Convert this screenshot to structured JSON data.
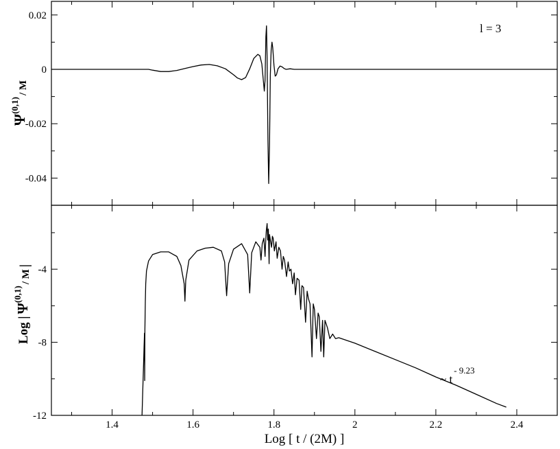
{
  "chart_data": [
    {
      "type": "line",
      "panel": "top",
      "ylabel": {
        "main": "Ψ",
        "sup": "(0,1)",
        "sub": "/ M"
      },
      "annotation": "l = 3",
      "xlim": [
        1.25,
        2.5
      ],
      "ylim": [
        -0.05,
        0.025
      ],
      "yticks": [
        0.02,
        0,
        -0.02,
        -0.04
      ],
      "ytick_labels": [
        "0.02",
        "0",
        "-0.02",
        "-0.04"
      ],
      "series": [
        {
          "x": [
            1.25,
            1.3,
            1.4,
            1.48,
            1.49,
            1.5,
            1.52,
            1.54,
            1.56,
            1.58,
            1.6,
            1.62,
            1.64,
            1.66,
            1.68,
            1.7,
            1.71,
            1.72,
            1.73,
            1.74,
            1.75,
            1.76,
            1.765,
            1.77,
            1.773,
            1.776,
            1.778,
            1.78,
            1.7815,
            1.783,
            1.785,
            1.787,
            1.789,
            1.791,
            1.793,
            1.795,
            1.797,
            1.8,
            1.803,
            1.806,
            1.81,
            1.815,
            1.82,
            1.825,
            1.83,
            1.84,
            1.85,
            1.9,
            2.0,
            2.2,
            2.4,
            2.5
          ],
          "y": [
            0,
            0,
            0,
            0,
            0,
            -0.0003,
            -0.0008,
            -0.0008,
            -0.0004,
            0.0003,
            0.001,
            0.0016,
            0.0018,
            0.0013,
            0.0002,
            -0.002,
            -0.0032,
            -0.0038,
            -0.003,
            0.0002,
            0.004,
            0.0055,
            0.005,
            0.002,
            -0.003,
            -0.008,
            -0.004,
            0.012,
            0.016,
            0.004,
            -0.026,
            -0.042,
            -0.028,
            -0.002,
            0.007,
            0.01,
            0.008,
            0.0015,
            -0.0025,
            -0.002,
            0.0002,
            0.0012,
            0.0009,
            0.0003,
            0.0,
            0.0002,
            0,
            0,
            0,
            0,
            0,
            0
          ]
        }
      ]
    },
    {
      "type": "line",
      "panel": "bottom",
      "ylabel": {
        "prefix": "Log |",
        "main": "Ψ",
        "sup": "(0,1)",
        "sub": "/ M",
        "suffix": "|"
      },
      "annotation": {
        "base": "~ t",
        "exponent": "- 9.23"
      },
      "xlabel": "Log [ t / (2M) ]",
      "xlim": [
        1.25,
        2.5
      ],
      "ylim": [
        -12,
        -0.5
      ],
      "xticks": [
        1.4,
        1.6,
        1.8,
        2.0,
        2.2,
        2.4
      ],
      "xtick_labels": [
        "1.4",
        "1.6",
        "1.8",
        "2",
        "2.2",
        "2.4"
      ],
      "yticks": [
        -4,
        -8,
        -12
      ],
      "ytick_labels": [
        "-4",
        "-8",
        "-12"
      ],
      "series": [
        {
          "x": [
            1.474,
            1.476,
            1.478,
            1.479,
            1.48,
            1.4805,
            1.481,
            1.482,
            1.483,
            1.485,
            1.49,
            1.5,
            1.52,
            1.54,
            1.56,
            1.57,
            1.578,
            1.58,
            1.582,
            1.59,
            1.61,
            1.63,
            1.65,
            1.67,
            1.678,
            1.683,
            1.688,
            1.7,
            1.72,
            1.735,
            1.74,
            1.745,
            1.755,
            1.765,
            1.768,
            1.771,
            1.775,
            1.778,
            1.7795,
            1.781,
            1.783,
            1.7845,
            1.786,
            1.788,
            1.789,
            1.791,
            1.794,
            1.796,
            1.798,
            1.801,
            1.805,
            1.808,
            1.812,
            1.816,
            1.82,
            1.823,
            1.826,
            1.831,
            1.835,
            1.838,
            1.842,
            1.846,
            1.85,
            1.853,
            1.857,
            1.862,
            1.866,
            1.869,
            1.873,
            1.878,
            1.882,
            1.885,
            1.889,
            1.894,
            1.897,
            1.9,
            1.905,
            1.909,
            1.912,
            1.916,
            1.92,
            1.923,
            1.926,
            1.932,
            1.938,
            1.945,
            1.952,
            1.96,
            1.98,
            2.0,
            2.05,
            2.1,
            2.15,
            2.2,
            2.25,
            2.3,
            2.35,
            2.374
          ],
          "y": [
            -12,
            -10.5,
            -9,
            -8.2,
            -7.5,
            -10.1,
            -7.3,
            -5.8,
            -4.8,
            -4.1,
            -3.55,
            -3.2,
            -3.05,
            -3.05,
            -3.3,
            -3.8,
            -4.8,
            -5.75,
            -4.6,
            -3.5,
            -3.0,
            -2.85,
            -2.8,
            -3.0,
            -3.6,
            -5.45,
            -3.7,
            -2.9,
            -2.6,
            -3.2,
            -5.3,
            -3.1,
            -2.5,
            -2.8,
            -3.5,
            -2.6,
            -2.3,
            -3.3,
            -2.5,
            -1.9,
            -1.5,
            -2.4,
            -1.8,
            -3.7,
            -2.1,
            -2.4,
            -2.8,
            -2.2,
            -2.3,
            -3.0,
            -2.5,
            -3.4,
            -2.8,
            -3.0,
            -4.0,
            -3.3,
            -3.5,
            -4.4,
            -3.6,
            -4.1,
            -4.0,
            -4.8,
            -4.2,
            -5.4,
            -4.5,
            -4.6,
            -6.2,
            -4.9,
            -5.0,
            -6.9,
            -5.2,
            -5.6,
            -5.9,
            -8.8,
            -5.9,
            -6.2,
            -7.8,
            -6.4,
            -6.6,
            -8.5,
            -6.8,
            -8.8,
            -6.8,
            -7.2,
            -7.8,
            -7.55,
            -7.8,
            -7.75,
            -7.9,
            -8.05,
            -8.5,
            -8.95,
            -9.4,
            -9.9,
            -10.35,
            -10.85,
            -11.35,
            -11.55
          ]
        }
      ]
    }
  ]
}
